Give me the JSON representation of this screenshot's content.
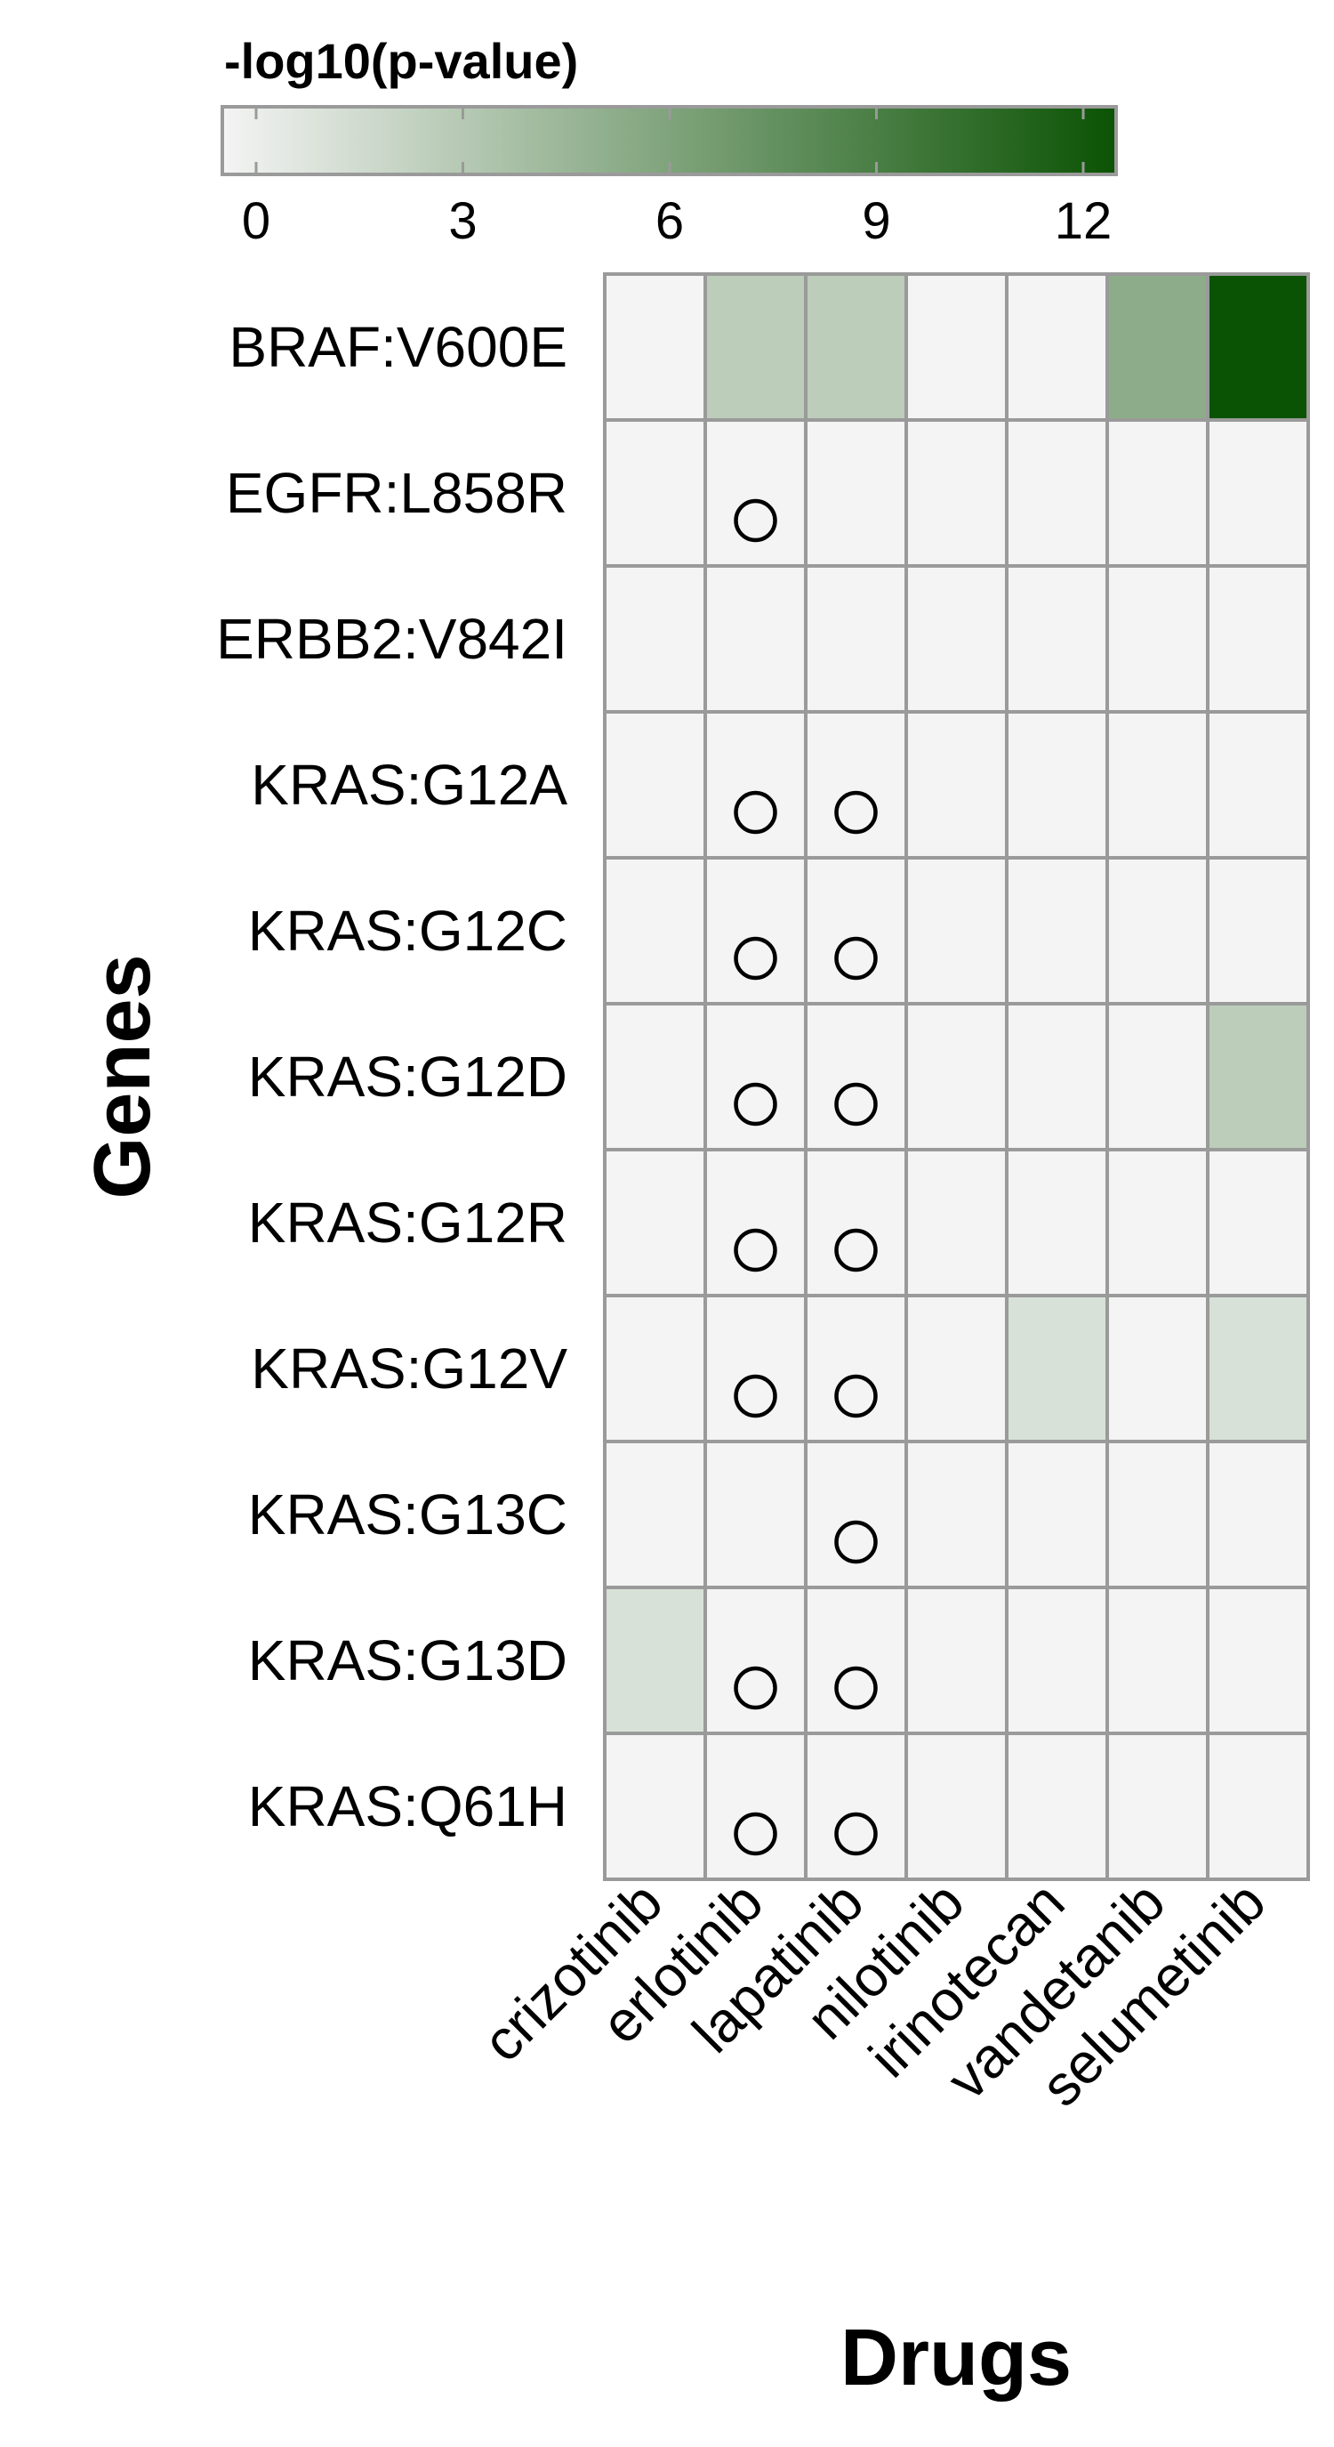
{
  "colors": {
    "low": "#f4f4f4",
    "high": "#0b5304",
    "grid": "#9a9a9a",
    "marker": "#000000",
    "background": "#ffffff"
  },
  "chart_data": {
    "type": "heatmap",
    "title": "",
    "xlabel": "Drugs",
    "ylabel": "Genes",
    "legend": {
      "title": "-log10(p-value)",
      "ticks": [
        "0",
        "3",
        "6",
        "9",
        "12"
      ],
      "range": [
        0,
        12.5
      ],
      "placement": "top"
    },
    "x_categories": [
      "crizotinib",
      "erlotinib",
      "lapatinib",
      "nilotinib",
      "irinotecan",
      "vandetanib",
      "selumetinib"
    ],
    "y_categories": [
      "BRAF:V600E",
      "EGFR:L858R",
      "ERBB2:V842I",
      "KRAS:G12A",
      "KRAS:G12C",
      "KRAS:G12D",
      "KRAS:G12R",
      "KRAS:G12V",
      "KRAS:G13C",
      "KRAS:G13D",
      "KRAS:Q61H"
    ],
    "values": [
      [
        0,
        3,
        3,
        0,
        0,
        5.5,
        12.5
      ],
      [
        0,
        0,
        0,
        0,
        0,
        0,
        0
      ],
      [
        0,
        0,
        0,
        0,
        0,
        0,
        0
      ],
      [
        0,
        0,
        0,
        0,
        0,
        0,
        0
      ],
      [
        0,
        0,
        0,
        0,
        0,
        0,
        0
      ],
      [
        0,
        0,
        0,
        0,
        0,
        0,
        3
      ],
      [
        0,
        0,
        0,
        0,
        0,
        0,
        0
      ],
      [
        0,
        0,
        0,
        0,
        1.5,
        0,
        1.5
      ],
      [
        0,
        0,
        0,
        0,
        0,
        0,
        0
      ],
      [
        1.5,
        0,
        0,
        0,
        0,
        0,
        0
      ],
      [
        0,
        0,
        0,
        0,
        0,
        0,
        0
      ]
    ],
    "markers": [
      [
        0,
        0,
        0,
        0,
        0,
        0,
        0
      ],
      [
        0,
        1,
        0,
        0,
        0,
        0,
        0
      ],
      [
        0,
        0,
        0,
        0,
        0,
        0,
        0
      ],
      [
        0,
        1,
        1,
        0,
        0,
        0,
        0
      ],
      [
        0,
        1,
        1,
        0,
        0,
        0,
        0
      ],
      [
        0,
        1,
        1,
        0,
        0,
        0,
        0
      ],
      [
        0,
        1,
        1,
        0,
        0,
        0,
        0
      ],
      [
        0,
        1,
        1,
        0,
        0,
        0,
        0
      ],
      [
        0,
        0,
        1,
        0,
        0,
        0,
        0
      ],
      [
        0,
        1,
        1,
        0,
        0,
        0,
        0
      ],
      [
        0,
        1,
        1,
        0,
        0,
        0,
        0
      ]
    ],
    "grid": true
  }
}
